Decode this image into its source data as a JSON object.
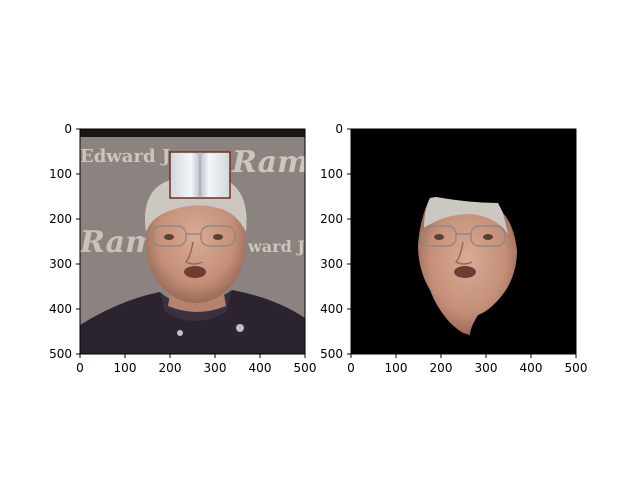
{
  "panels": [
    {
      "name": "original-image-panel",
      "description_visible": "photo of a man with an inserted book image",
      "background_banner_text": [
        "Edward Jo",
        "Ram",
        "Ram",
        "ward Jor",
        "Edwa"
      ],
      "xticks": [
        "0",
        "100",
        "200",
        "300",
        "400",
        "500"
      ],
      "yticks": [
        "0",
        "100",
        "200",
        "300",
        "400",
        "500"
      ]
    },
    {
      "name": "segmented-face-panel",
      "xticks": [
        "0",
        "100",
        "200",
        "300",
        "400",
        "500"
      ],
      "yticks": [
        "0",
        "100",
        "200",
        "300",
        "400",
        "500"
      ]
    }
  ],
  "colors": {
    "backdrop": "#8e8784",
    "banner_text": "#d9d2c5",
    "skin": "#c99a84",
    "hair": "#c9c6c0",
    "jacket": "#2a2230",
    "mask_bg": "#000000",
    "book_page": "#e8edf2",
    "book_edge": "#7a2b22"
  }
}
